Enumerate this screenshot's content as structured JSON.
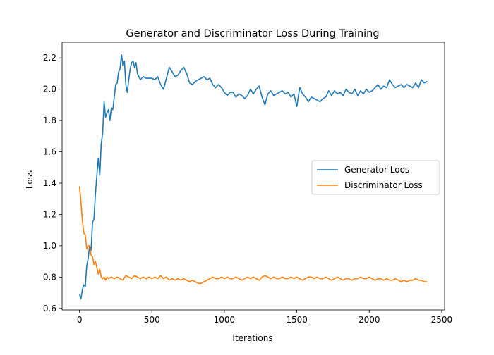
{
  "chart_data": {
    "type": "line",
    "title": "Generator and Discriminator Loss During Training",
    "xlabel": "Iterations",
    "ylabel": "Loss",
    "xlim": [
      -120,
      2520
    ],
    "ylim": [
      0.59,
      2.3
    ],
    "xticks": [
      0,
      500,
      1000,
      1500,
      2000,
      2500
    ],
    "yticks": [
      0.6,
      0.8,
      1.0,
      1.2,
      1.4,
      1.6,
      1.8,
      2.0,
      2.2
    ],
    "xtick_labels": [
      "0",
      "500",
      "1000",
      "1500",
      "2000",
      "2500"
    ],
    "ytick_labels": [
      "0.6",
      "0.8",
      "1.0",
      "1.2",
      "1.4",
      "1.6",
      "1.8",
      "2.0",
      "2.2"
    ],
    "grid": false,
    "legend_position": "center-right",
    "series": [
      {
        "name": "Generator Loos",
        "color": "#1f77b4",
        "x": [
          0,
          10,
          20,
          30,
          40,
          50,
          60,
          70,
          80,
          90,
          100,
          110,
          120,
          130,
          140,
          150,
          160,
          170,
          180,
          190,
          200,
          210,
          220,
          230,
          240,
          250,
          260,
          270,
          280,
          290,
          300,
          310,
          320,
          330,
          340,
          350,
          360,
          370,
          380,
          390,
          400,
          420,
          440,
          460,
          480,
          500,
          520,
          540,
          560,
          580,
          600,
          620,
          640,
          660,
          680,
          700,
          720,
          740,
          760,
          780,
          800,
          820,
          840,
          860,
          880,
          900,
          920,
          940,
          960,
          980,
          1000,
          1020,
          1040,
          1060,
          1080,
          1100,
          1120,
          1140,
          1160,
          1180,
          1200,
          1220,
          1240,
          1260,
          1280,
          1300,
          1320,
          1340,
          1360,
          1380,
          1400,
          1420,
          1440,
          1460,
          1480,
          1500,
          1520,
          1540,
          1560,
          1580,
          1600,
          1620,
          1640,
          1660,
          1680,
          1700,
          1720,
          1740,
          1760,
          1780,
          1800,
          1820,
          1840,
          1860,
          1880,
          1900,
          1920,
          1940,
          1960,
          1980,
          2000,
          2020,
          2040,
          2060,
          2080,
          2100,
          2120,
          2140,
          2160,
          2180,
          2200,
          2220,
          2240,
          2260,
          2280,
          2300,
          2320,
          2340,
          2360,
          2380,
          2400
        ],
        "y": [
          0.69,
          0.66,
          0.72,
          0.75,
          0.74,
          0.87,
          0.92,
          1.0,
          0.97,
          1.15,
          1.17,
          1.33,
          1.45,
          1.56,
          1.45,
          1.65,
          1.72,
          1.92,
          1.82,
          1.85,
          1.87,
          1.8,
          1.88,
          1.87,
          1.95,
          2.03,
          2.04,
          2.11,
          2.13,
          2.22,
          2.15,
          2.18,
          2.03,
          1.98,
          2.06,
          2.13,
          2.17,
          2.18,
          2.14,
          2.17,
          2.1,
          2.06,
          2.08,
          2.07,
          2.07,
          2.07,
          2.06,
          2.08,
          2.03,
          2.0,
          2.07,
          2.14,
          2.11,
          2.08,
          2.09,
          2.12,
          2.14,
          2.1,
          2.04,
          2.03,
          2.05,
          2.06,
          2.07,
          2.08,
          2.06,
          2.07,
          2.03,
          2.01,
          2.03,
          2.01,
          1.98,
          1.96,
          1.98,
          1.98,
          1.95,
          1.97,
          1.96,
          1.94,
          1.96,
          2.0,
          1.97,
          2.0,
          2.02,
          1.95,
          1.9,
          1.97,
          1.99,
          1.96,
          1.97,
          1.98,
          1.99,
          1.97,
          1.98,
          1.95,
          1.97,
          1.89,
          2.01,
          1.97,
          1.95,
          1.92,
          1.95,
          1.94,
          1.93,
          1.92,
          1.94,
          1.95,
          1.99,
          1.96,
          1.99,
          1.97,
          1.98,
          1.96,
          2.0,
          1.98,
          1.97,
          2.0,
          1.96,
          1.99,
          1.97,
          2.0,
          1.98,
          1.99,
          2.01,
          2.03,
          2.0,
          2.02,
          2.01,
          2.06,
          2.03,
          2.01,
          2.02,
          2.03,
          2.01,
          2.03,
          2.02,
          2.01,
          2.04,
          2.01,
          2.06,
          2.04,
          2.05
        ]
      },
      {
        "name": "Discriminator Loss",
        "color": "#ff7f0e",
        "x": [
          0,
          10,
          20,
          30,
          40,
          50,
          60,
          70,
          80,
          90,
          100,
          110,
          120,
          130,
          140,
          150,
          160,
          170,
          180,
          190,
          200,
          220,
          240,
          260,
          280,
          300,
          320,
          340,
          360,
          380,
          400,
          420,
          440,
          460,
          480,
          500,
          520,
          540,
          560,
          580,
          600,
          620,
          640,
          660,
          680,
          700,
          720,
          740,
          760,
          780,
          800,
          820,
          840,
          860,
          880,
          900,
          920,
          940,
          960,
          980,
          1000,
          1020,
          1040,
          1060,
          1080,
          1100,
          1120,
          1140,
          1160,
          1180,
          1200,
          1220,
          1240,
          1260,
          1280,
          1300,
          1320,
          1340,
          1360,
          1380,
          1400,
          1420,
          1440,
          1460,
          1480,
          1500,
          1520,
          1540,
          1560,
          1580,
          1600,
          1620,
          1640,
          1660,
          1680,
          1700,
          1720,
          1740,
          1760,
          1780,
          1800,
          1820,
          1840,
          1860,
          1880,
          1900,
          1920,
          1940,
          1960,
          1980,
          2000,
          2020,
          2040,
          2060,
          2080,
          2100,
          2120,
          2140,
          2160,
          2180,
          2200,
          2220,
          2240,
          2260,
          2280,
          2300,
          2320,
          2340,
          2360,
          2380,
          2400
        ],
        "y": [
          1.38,
          1.28,
          1.16,
          1.08,
          1.07,
          0.98,
          1.0,
          1.0,
          0.94,
          0.93,
          0.88,
          0.9,
          0.86,
          0.82,
          0.85,
          0.8,
          0.79,
          0.8,
          0.78,
          0.8,
          0.79,
          0.8,
          0.79,
          0.8,
          0.79,
          0.78,
          0.81,
          0.8,
          0.79,
          0.81,
          0.8,
          0.79,
          0.8,
          0.79,
          0.8,
          0.79,
          0.8,
          0.79,
          0.81,
          0.79,
          0.8,
          0.78,
          0.79,
          0.78,
          0.79,
          0.78,
          0.79,
          0.78,
          0.77,
          0.78,
          0.77,
          0.76,
          0.76,
          0.77,
          0.78,
          0.79,
          0.8,
          0.79,
          0.79,
          0.8,
          0.79,
          0.8,
          0.79,
          0.79,
          0.8,
          0.79,
          0.78,
          0.79,
          0.8,
          0.79,
          0.8,
          0.79,
          0.78,
          0.8,
          0.81,
          0.8,
          0.79,
          0.8,
          0.79,
          0.79,
          0.8,
          0.79,
          0.79,
          0.8,
          0.79,
          0.8,
          0.79,
          0.78,
          0.79,
          0.8,
          0.8,
          0.79,
          0.8,
          0.79,
          0.79,
          0.8,
          0.79,
          0.78,
          0.79,
          0.8,
          0.79,
          0.78,
          0.79,
          0.79,
          0.78,
          0.79,
          0.79,
          0.8,
          0.79,
          0.79,
          0.8,
          0.79,
          0.78,
          0.79,
          0.79,
          0.78,
          0.79,
          0.78,
          0.78,
          0.79,
          0.78,
          0.77,
          0.78,
          0.77,
          0.78,
          0.78,
          0.79,
          0.78,
          0.78,
          0.77,
          0.77
        ]
      }
    ]
  }
}
